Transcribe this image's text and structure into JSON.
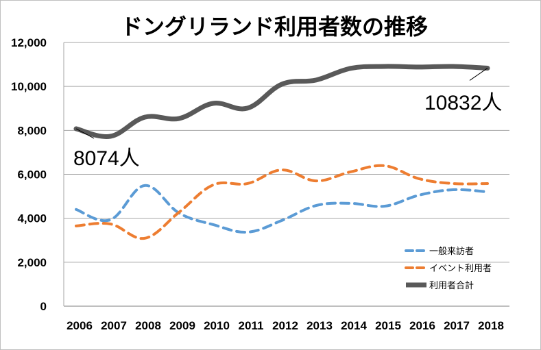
{
  "chart_data": {
    "type": "line",
    "title": "ドングリランド利用者数の推移",
    "xlabel": "",
    "ylabel": "",
    "ylim": [
      0,
      12000
    ],
    "yticks": [
      "0",
      "2,000",
      "4,000",
      "6,000",
      "8,000",
      "10,000",
      "12,000"
    ],
    "ytick_values": [
      0,
      2000,
      4000,
      6000,
      8000,
      10000,
      12000
    ],
    "categories": [
      "2006",
      "2007",
      "2008",
      "2009",
      "2010",
      "2011",
      "2012",
      "2013",
      "2014",
      "2015",
      "2016",
      "2017",
      "2018"
    ],
    "grid": true,
    "legend_position": "bottom-right",
    "series": [
      {
        "name": "一般来訪者",
        "color": "#5B9BD5",
        "style": "dashed",
        "values": [
          4400,
          3930,
          5490,
          4240,
          3710,
          3370,
          3900,
          4580,
          4680,
          4550,
          5050,
          5300,
          5200
        ]
      },
      {
        "name": "イベント利用者",
        "color": "#ED7D31",
        "style": "dashed",
        "values": [
          3650,
          3740,
          3090,
          4270,
          5520,
          5580,
          6200,
          5700,
          6110,
          6390,
          5800,
          5580,
          5580
        ]
      },
      {
        "name": "利用者合計",
        "color": "#595959",
        "style": "solid",
        "values": [
          8074,
          7730,
          8600,
          8540,
          9230,
          9010,
          10100,
          10290,
          10820,
          10910,
          10880,
          10910,
          10832
        ]
      }
    ],
    "annotations": [
      {
        "text": "8074人",
        "category": "2006",
        "series": "利用者合計"
      },
      {
        "text": "10832人",
        "category": "2018",
        "series": "利用者合計"
      }
    ]
  }
}
